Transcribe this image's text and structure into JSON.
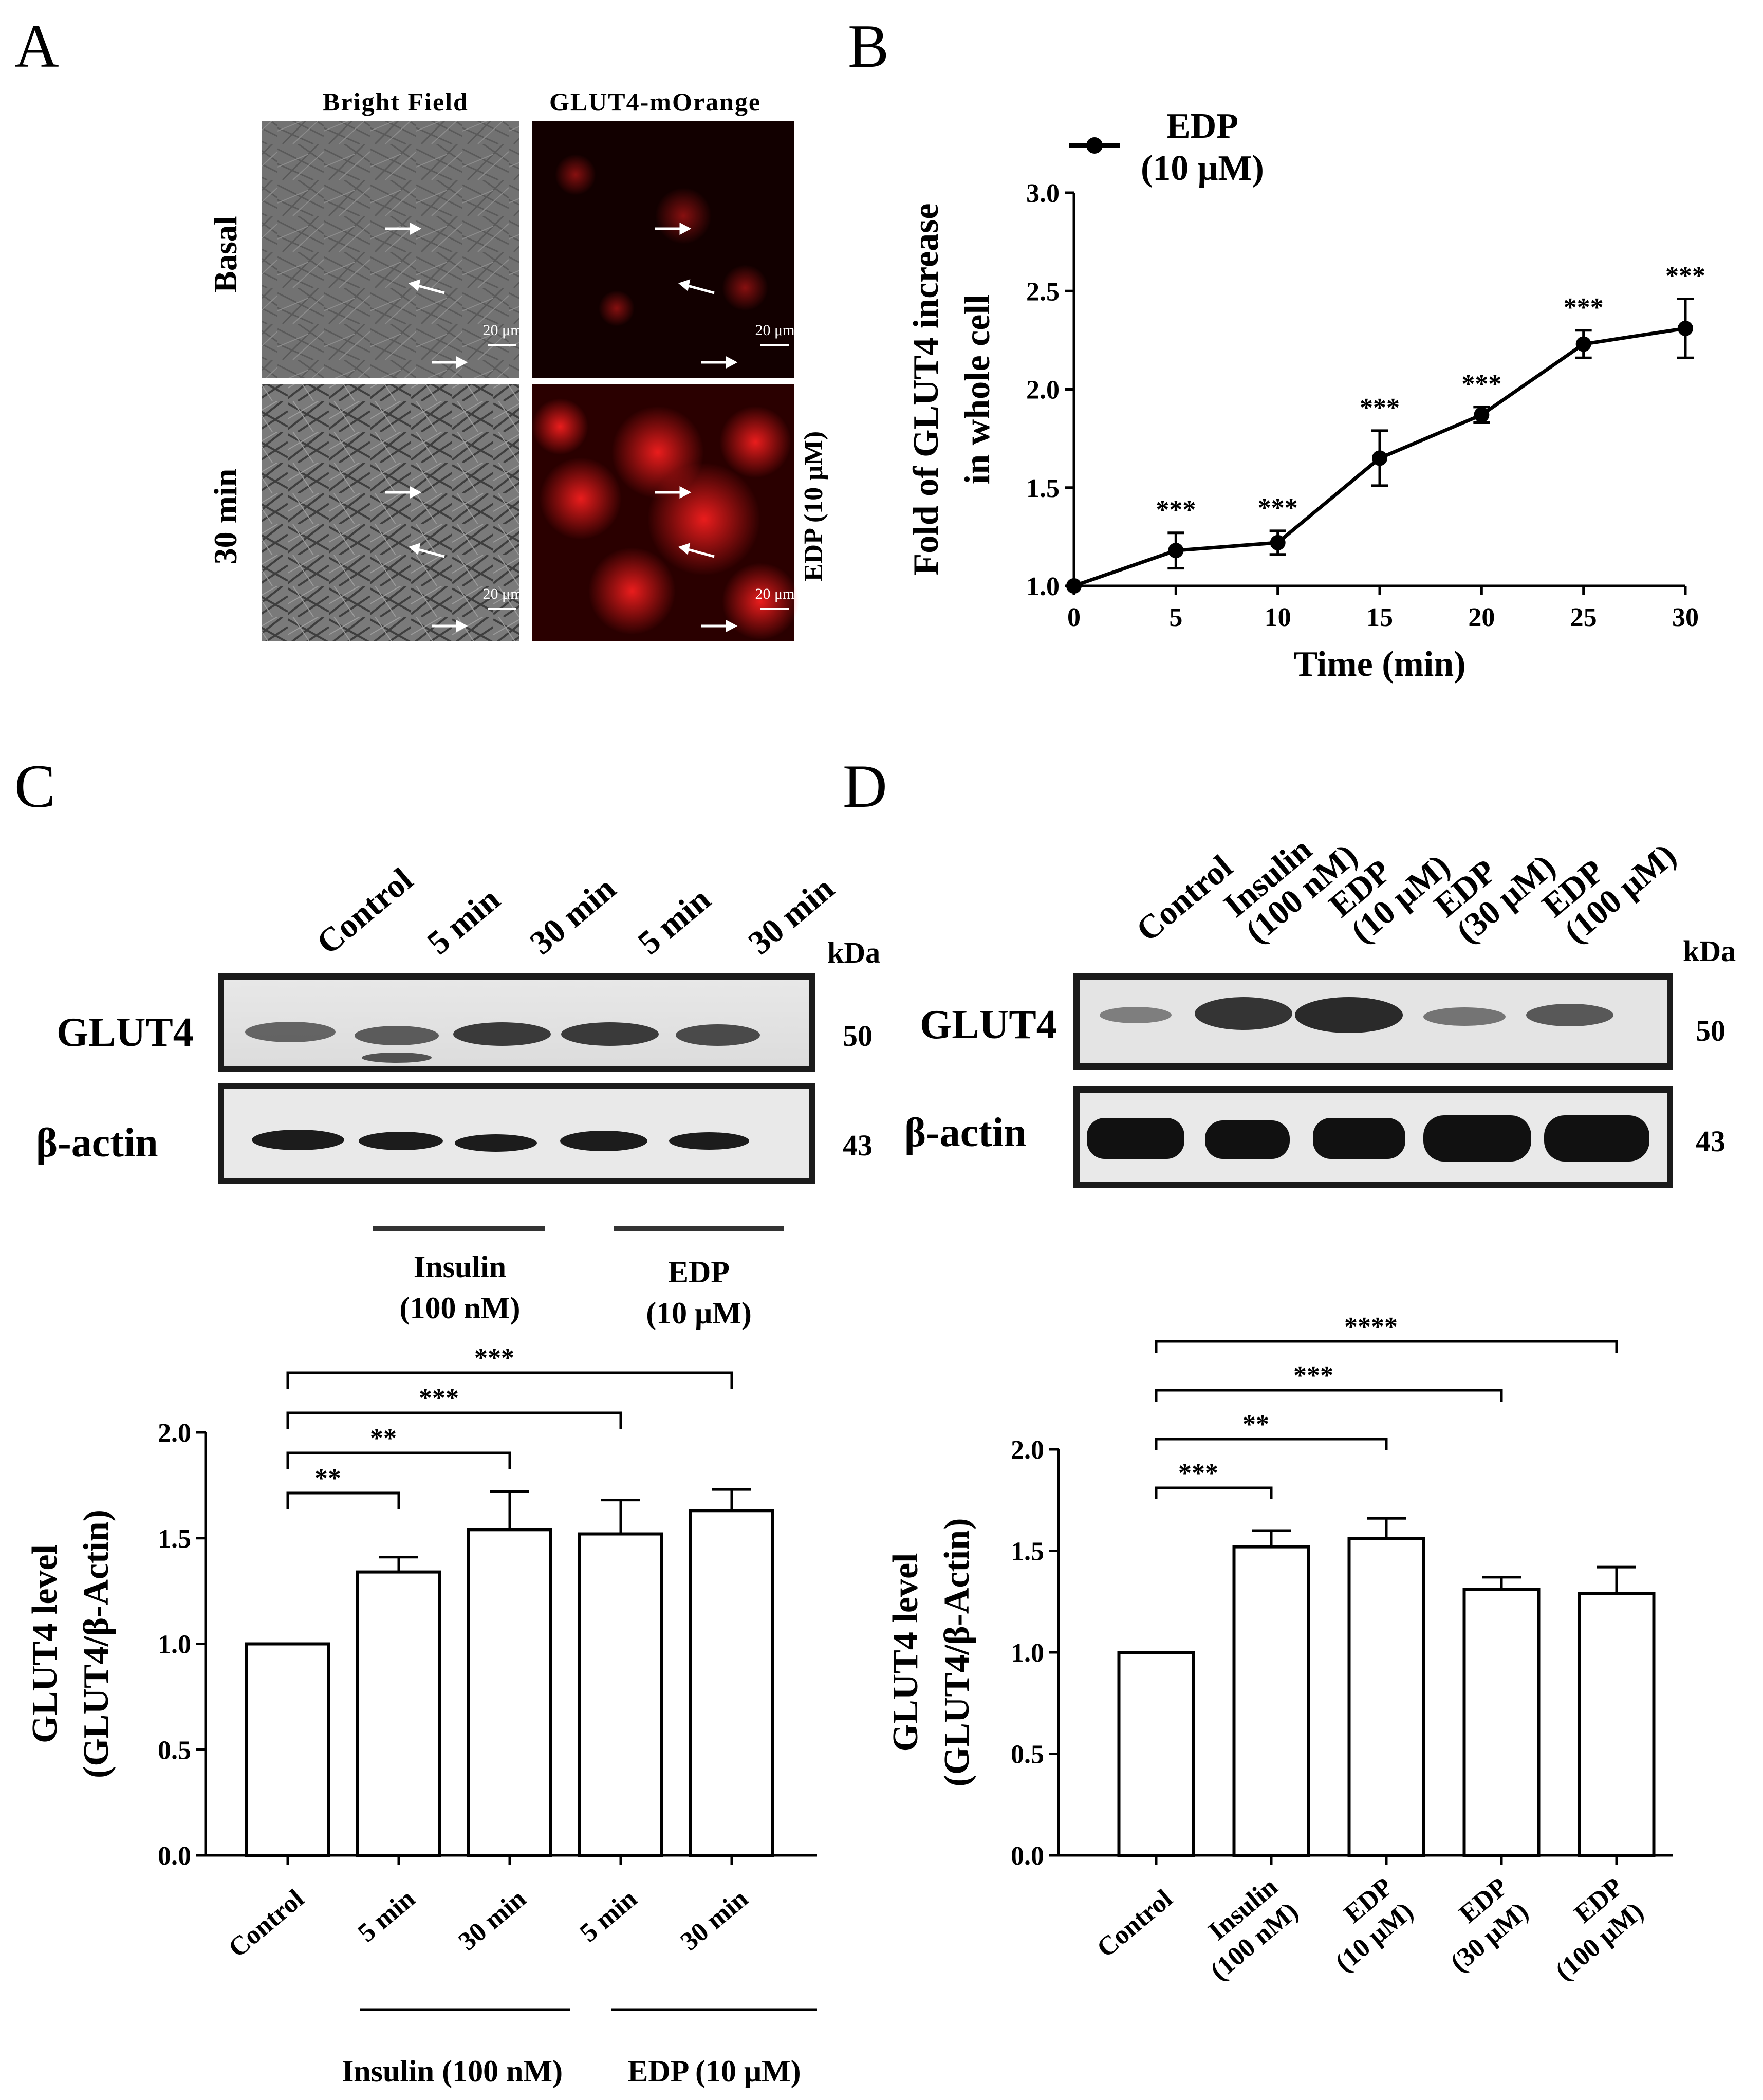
{
  "panels": {
    "A": {
      "label": "A",
      "columns": [
        "Bright Field",
        "GLUT4-mOrange"
      ],
      "rows": [
        "Basal",
        "30 min"
      ],
      "side_label": "EDP (10 μM)",
      "scale_bar": "20 μm",
      "colors": {
        "fluorescence": "#e01010",
        "brightfield": "#6f6f6f"
      }
    },
    "B": {
      "label": "B",
      "legend": {
        "series": "EDP",
        "dose": "(10 μM)"
      }
    },
    "C": {
      "label": "C",
      "lanes": [
        "Control",
        "5 min",
        "30 min",
        "5 min",
        "30 min"
      ],
      "kda_label": "kDa",
      "bands": [
        {
          "name": "GLUT4",
          "kda": "50"
        },
        {
          "name": "β-actin",
          "kda": "43"
        }
      ],
      "groups": [
        {
          "name": "Insulin",
          "dose": "(100 nM)"
        },
        {
          "name": "EDP",
          "dose": "(10 μM)"
        }
      ],
      "bottom_groups": [
        "Insulin (100 nM)",
        "EDP (10 μM)"
      ]
    },
    "D": {
      "label": "D",
      "lanes": [
        {
          "l1": "Control",
          "l2": ""
        },
        {
          "l1": "Insulin",
          "l2": "(100 nM)"
        },
        {
          "l1": "EDP",
          "l2": "(10 μM)"
        },
        {
          "l1": "EDP",
          "l2": "(30 μM)"
        },
        {
          "l1": "EDP",
          "l2": "(100 μM)"
        }
      ],
      "kda_label": "kDa",
      "bands": [
        {
          "name": "GLUT4",
          "kda": "50"
        },
        {
          "name": "β-actin",
          "kda": "43"
        }
      ]
    }
  },
  "chart_data": [
    {
      "panel": "B",
      "type": "line",
      "xlabel": "Time (min)",
      "ylabel": [
        "Fold of GLUT4 increase",
        "in whole cell"
      ],
      "xlim": [
        0,
        30
      ],
      "ylim": [
        1.0,
        3.0
      ],
      "xticks": [
        0,
        5,
        10,
        15,
        20,
        25,
        30
      ],
      "yticks": [
        "1.0",
        "1.5",
        "2.0",
        "2.5",
        "3.0"
      ],
      "series": [
        {
          "name": "EDP",
          "x": [
            0,
            5,
            10,
            15,
            20,
            25,
            30
          ],
          "y": [
            1.0,
            1.18,
            1.22,
            1.65,
            1.87,
            2.23,
            2.31
          ],
          "err": [
            0,
            0.09,
            0.06,
            0.14,
            0.04,
            0.07,
            0.15
          ],
          "sig": [
            "",
            "***",
            "***",
            "***",
            "***",
            "***",
            "***"
          ]
        }
      ],
      "grid": false
    },
    {
      "panel": "C",
      "type": "bar",
      "ylabel": [
        "GLUT4 level",
        "(GLUT4/β-Actin)"
      ],
      "ylim": [
        0.0,
        2.0
      ],
      "yticks": [
        "0.0",
        "0.5",
        "1.0",
        "1.5",
        "2.0"
      ],
      "categories": [
        "Control",
        "5 min",
        "30 min",
        "5 min",
        "30 min"
      ],
      "values": [
        1.0,
        1.34,
        1.54,
        1.52,
        1.63
      ],
      "errors": [
        0,
        0.07,
        0.18,
        0.16,
        0.1
      ],
      "comparisons": [
        {
          "from": 0,
          "to": 1,
          "label": "**"
        },
        {
          "from": 0,
          "to": 2,
          "label": "**"
        },
        {
          "from": 0,
          "to": 3,
          "label": "***"
        },
        {
          "from": 0,
          "to": 4,
          "label": "***"
        }
      ]
    },
    {
      "panel": "D",
      "type": "bar",
      "ylabel": [
        "GLUT4 level",
        "(GLUT4/β-Actin)"
      ],
      "ylim": [
        0.0,
        2.0
      ],
      "yticks": [
        "0.0",
        "0.5",
        "1.0",
        "1.5",
        "2.0"
      ],
      "categories": [
        {
          "l1": "Control",
          "l2": ""
        },
        {
          "l1": "Insulin",
          "l2": "(100 nM)"
        },
        {
          "l1": "EDP",
          "l2": "(10 μM)"
        },
        {
          "l1": "EDP",
          "l2": "(30 μM)"
        },
        {
          "l1": "EDP",
          "l2": "(100 μM)"
        }
      ],
      "values": [
        1.0,
        1.52,
        1.56,
        1.31,
        1.29
      ],
      "errors": [
        0,
        0.08,
        0.1,
        0.06,
        0.13
      ],
      "comparisons": [
        {
          "from": 0,
          "to": 1,
          "label": "***"
        },
        {
          "from": 0,
          "to": 2,
          "label": "**"
        },
        {
          "from": 0,
          "to": 3,
          "label": "***"
        },
        {
          "from": 0,
          "to": 4,
          "label": "****"
        }
      ]
    }
  ]
}
